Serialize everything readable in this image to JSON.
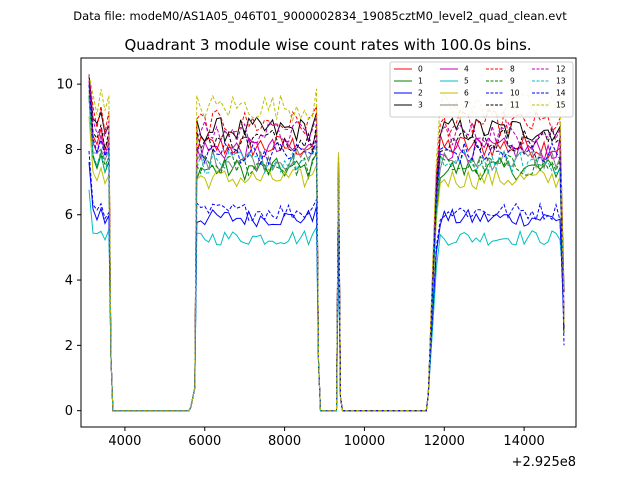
{
  "header": {
    "file_label": "Data file: modeM0/AS1A05_046T01_9000002834_19085cztM0_level2_quad_clean.evt"
  },
  "chart_data": {
    "type": "line",
    "title": "Quadrant 3 module wise count rates with 100.0s bins.",
    "xlabel": "",
    "ylabel": "",
    "x_offset_label": "+2.925e8",
    "xlim": [
      2900,
      15300
    ],
    "ylim": [
      -0.5,
      10.8
    ],
    "xticks": [
      4000,
      6000,
      8000,
      10000,
      12000,
      14000
    ],
    "xtick_labels": [
      "4000",
      "6000",
      "8000",
      "10000",
      "12000",
      "14000"
    ],
    "yticks": [
      0,
      2,
      4,
      6,
      8,
      10
    ],
    "ytick_labels": [
      "0",
      "2",
      "4",
      "6",
      "8",
      "10"
    ],
    "grid": false,
    "legend_location": "top-right",
    "legend_columns": 4,
    "segments": [
      {
        "start": 3100,
        "end": 3600,
        "peak": 10.2,
        "low_end": 0.0
      },
      {
        "start": 5700,
        "end": 8800,
        "rise_from": 0.7,
        "low_end": 0.0
      },
      {
        "start": 9350,
        "end": 9350,
        "spike": true
      },
      {
        "start": 11600,
        "end": 15000,
        "rise_from": 0.5,
        "end_drop": true
      }
    ],
    "gap_level": 0.0,
    "series": [
      {
        "name": "0",
        "color": "#ff0000",
        "dash": "solid",
        "level": 8.1
      },
      {
        "name": "1",
        "color": "#008000",
        "dash": "solid",
        "level": 7.4
      },
      {
        "name": "2",
        "color": "#0000ff",
        "dash": "solid",
        "level": 5.9
      },
      {
        "name": "3",
        "color": "#000000",
        "dash": "solid",
        "level": 8.6
      },
      {
        "name": "4",
        "color": "#bf00bf",
        "dash": "solid",
        "level": 8.0
      },
      {
        "name": "5",
        "color": "#00bfbf",
        "dash": "solid",
        "level": 5.3
      },
      {
        "name": "6",
        "color": "#bfbf00",
        "dash": "solid",
        "level": 7.1
      },
      {
        "name": "7",
        "color": "#808080",
        "dash": "solid",
        "level": 7.7
      },
      {
        "name": "8",
        "color": "#ff0000",
        "dash": "dashed",
        "level": 8.8
      },
      {
        "name": "9",
        "color": "#008000",
        "dash": "dashed",
        "level": 7.5
      },
      {
        "name": "10",
        "color": "#0000ff",
        "dash": "dashed",
        "level": 6.1
      },
      {
        "name": "11",
        "color": "#000000",
        "dash": "dashed",
        "level": 8.3
      },
      {
        "name": "12",
        "color": "#bf00bf",
        "dash": "dashed",
        "level": 8.5
      },
      {
        "name": "13",
        "color": "#00bfbf",
        "dash": "dashed",
        "level": 7.6
      },
      {
        "name": "14",
        "color": "#0000ff",
        "dash": "dashed",
        "level": 7.9
      },
      {
        "name": "15",
        "color": "#bfbf00",
        "dash": "dashed",
        "level": 9.3
      }
    ]
  }
}
